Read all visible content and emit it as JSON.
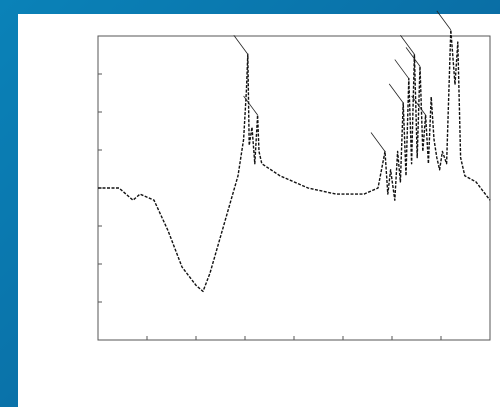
{
  "colors": {
    "background": "#0a6fa6",
    "panel": "#ffffff",
    "line": "#111111"
  },
  "chart_data": {
    "type": "line",
    "title": "",
    "xlabel": "",
    "ylabel": "",
    "xlim": [
      4000,
      1200
    ],
    "ylim": [
      0.75,
      1.25
    ],
    "grid": false,
    "x_ticks": [
      "",
      "",
      "",
      "",
      "",
      "",
      "",
      "",
      ""
    ],
    "y_ticks": [
      "",
      "",
      "",
      "",
      "",
      "",
      "",
      "",
      ""
    ],
    "series": [
      {
        "values": [
          [
            4000,
            1.0
          ],
          [
            3850,
            1.0
          ],
          [
            3750,
            0.98
          ],
          [
            3700,
            0.99
          ],
          [
            3600,
            0.98
          ],
          [
            3500,
            0.93
          ],
          [
            3400,
            0.87
          ],
          [
            3300,
            0.84
          ],
          [
            3250,
            0.83
          ],
          [
            3200,
            0.86
          ],
          [
            3100,
            0.94
          ],
          [
            3000,
            1.02
          ],
          [
            2960,
            1.08
          ],
          [
            2940,
            1.16
          ],
          [
            2930,
            1.22
          ],
          [
            2920,
            1.07
          ],
          [
            2900,
            1.1
          ],
          [
            2880,
            1.04
          ],
          [
            2860,
            1.12
          ],
          [
            2850,
            1.06
          ],
          [
            2830,
            1.04
          ],
          [
            2700,
            1.02
          ],
          [
            2500,
            1.0
          ],
          [
            2300,
            0.99
          ],
          [
            2100,
            0.99
          ],
          [
            2000,
            1.0
          ],
          [
            1950,
            1.06
          ],
          [
            1930,
            0.99
          ],
          [
            1910,
            1.03
          ],
          [
            1880,
            0.98
          ],
          [
            1860,
            1.06
          ],
          [
            1840,
            1.01
          ],
          [
            1820,
            1.14
          ],
          [
            1800,
            1.02
          ],
          [
            1780,
            1.18
          ],
          [
            1760,
            1.04
          ],
          [
            1740,
            1.22
          ],
          [
            1720,
            1.05
          ],
          [
            1700,
            1.2
          ],
          [
            1680,
            1.06
          ],
          [
            1660,
            1.12
          ],
          [
            1640,
            1.04
          ],
          [
            1620,
            1.15
          ],
          [
            1600,
            1.08
          ],
          [
            1580,
            1.05
          ],
          [
            1560,
            1.03
          ],
          [
            1540,
            1.06
          ],
          [
            1510,
            1.04
          ],
          [
            1480,
            1.26
          ],
          [
            1450,
            1.17
          ],
          [
            1430,
            1.24
          ],
          [
            1410,
            1.05
          ],
          [
            1380,
            1.02
          ],
          [
            1300,
            1.01
          ],
          [
            1200,
            0.98
          ]
        ]
      }
    ],
    "annotations": [
      {
        "text": "",
        "x": 2930,
        "y": 1.22
      },
      {
        "text": "",
        "x": 2860,
        "y": 1.12
      },
      {
        "text": "",
        "x": 1950,
        "y": 1.06
      },
      {
        "text": "",
        "x": 1820,
        "y": 1.14
      },
      {
        "text": "",
        "x": 1780,
        "y": 1.18
      },
      {
        "text": "",
        "x": 1700,
        "y": 1.2
      },
      {
        "text": "",
        "x": 1660,
        "y": 1.12
      },
      {
        "text": "",
        "x": 1740,
        "y": 1.22
      },
      {
        "text": "",
        "x": 1480,
        "y": 1.26
      }
    ]
  }
}
